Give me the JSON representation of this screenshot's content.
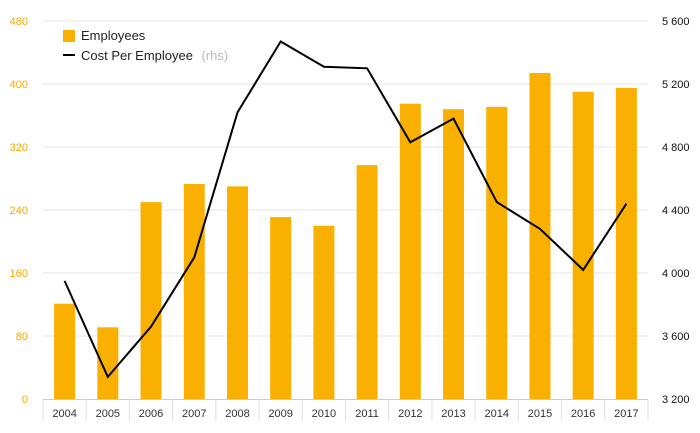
{
  "chart_data": {
    "type": "bar",
    "categories": [
      "2004",
      "2005",
      "2006",
      "2007",
      "2008",
      "2009",
      "2010",
      "2011",
      "2012",
      "2013",
      "2014",
      "2015",
      "2016",
      "2017"
    ],
    "series": [
      {
        "name": "Employees",
        "type": "bar",
        "axis": "left",
        "color": "#F9B000",
        "values": [
          121,
          91,
          250,
          273,
          270,
          231,
          220,
          297,
          375,
          368,
          371,
          414,
          390,
          395
        ]
      },
      {
        "name": "Cost Per Employee",
        "name_note": "(rhs)",
        "type": "line",
        "axis": "right",
        "color": "#000000",
        "values": [
          3950,
          3340,
          3660,
          4100,
          5020,
          5470,
          5310,
          5300,
          4830,
          4980,
          4450,
          4280,
          4020,
          4440
        ]
      }
    ],
    "left_axis": {
      "min": 0,
      "max": 480,
      "ticks": [
        "0",
        "80",
        "160",
        "240",
        "320",
        "400",
        "480"
      ],
      "color": "#F5A800"
    },
    "right_axis": {
      "min": 3200,
      "max": 5600,
      "ticks": [
        "3 200",
        "3 600",
        "4 000",
        "4 400",
        "4 800",
        "5 200",
        "5 600"
      ],
      "color": "#111111"
    },
    "grid": true,
    "legend_position": "top-left"
  }
}
